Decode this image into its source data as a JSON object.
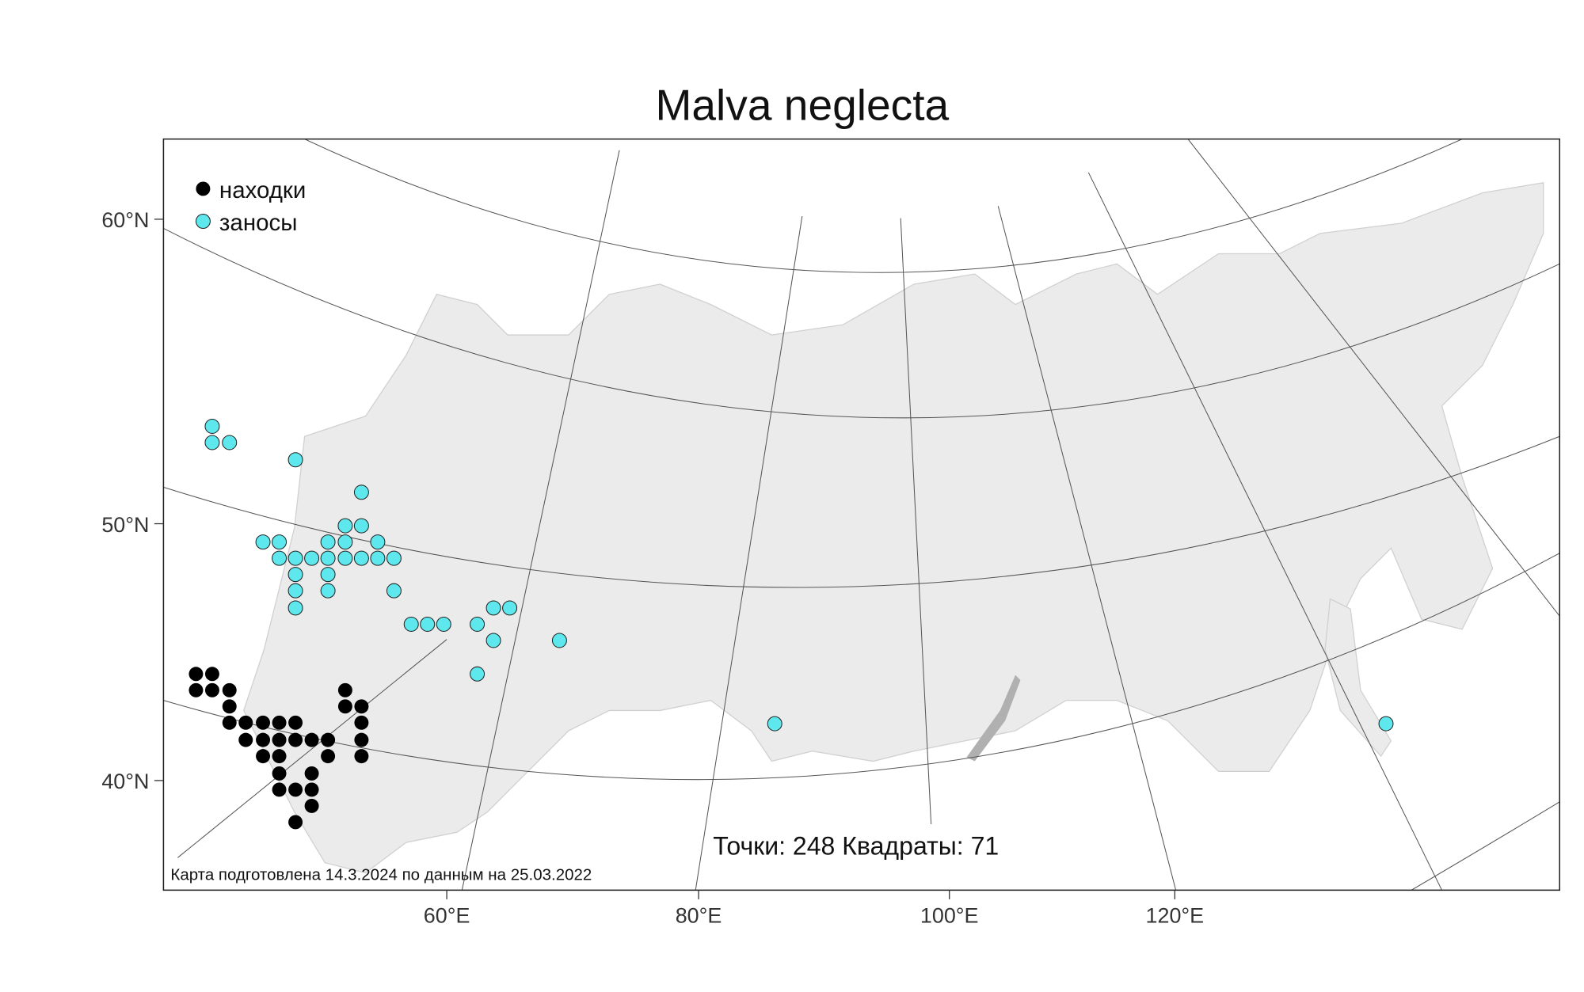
{
  "map": {
    "title": "Malva neglecta",
    "legend": [
      "находки",
      "заносы"
    ],
    "lat_labels": [
      "60°N",
      "50°N",
      "40°N"
    ],
    "lon_labels": [
      "60°E",
      "80°E",
      "100°E",
      "120°E"
    ],
    "stats": "Точки: 248 Квадраты: 71",
    "footnote": "Карта подготовлена 14.3.2024 по данным на 25.03.2022"
  }
}
